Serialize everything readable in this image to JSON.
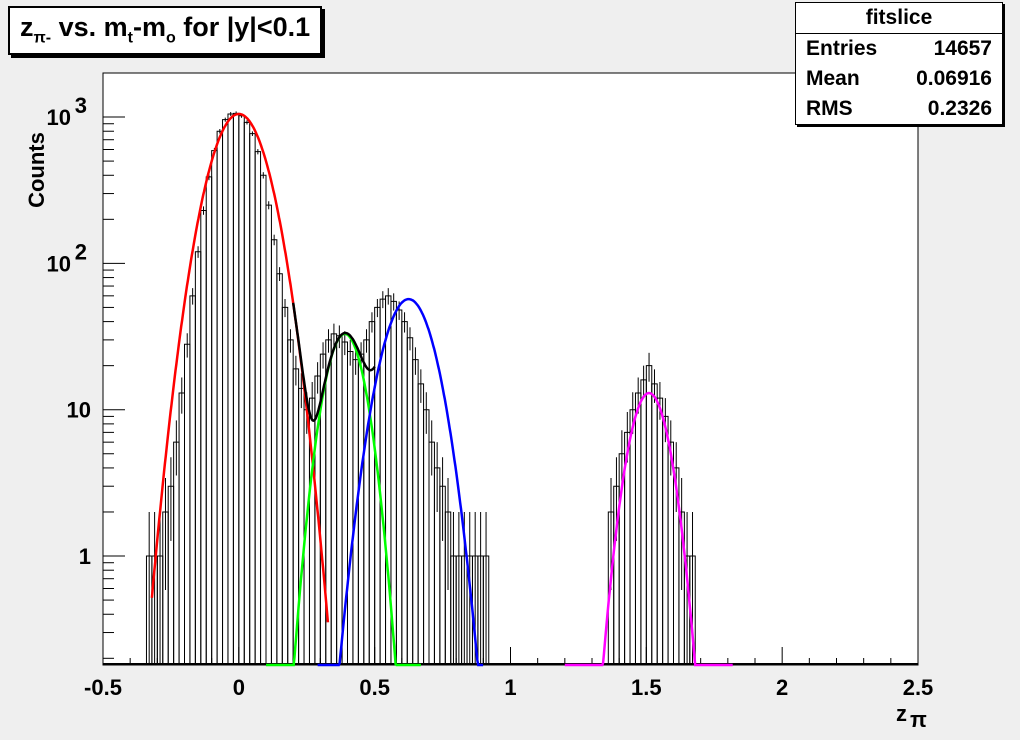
{
  "title": {
    "main": "z",
    "main_sub": "π-",
    "mid": " vs. m",
    "mid_sub": "t",
    "dash": "-m",
    "dash_sub": "o",
    "tail": " for |y|<0.1"
  },
  "stats": {
    "title": "fitslice",
    "rows": [
      {
        "label": "Entries",
        "value": "14657"
      },
      {
        "label": "Mean",
        "value": "0.06916"
      },
      {
        "label": "RMS",
        "value": "0.2326"
      }
    ]
  },
  "chart_data": {
    "type": "line",
    "title": "zπ- vs. mt-mo for |y|<0.1",
    "xlabel": "zπ",
    "ylabel": "Counts",
    "xlim": [
      -0.5,
      2.5
    ],
    "ylim": [
      0.18,
      2000
    ],
    "yscale": "log",
    "x_ticks": [
      "-0.5",
      "0",
      "0.5",
      "1",
      "1.5",
      "2",
      "2.5"
    ],
    "y_ticks": [
      {
        "value": 1,
        "base": "1",
        "exp": ""
      },
      {
        "value": 10,
        "base": "10",
        "exp": ""
      },
      {
        "value": 100,
        "base": "10",
        "exp": "2"
      },
      {
        "value": 1000,
        "base": "10",
        "exp": "3"
      }
    ],
    "histogram": {
      "name": "fitslice",
      "x": [
        -0.33,
        -0.31,
        -0.29,
        -0.27,
        -0.25,
        -0.23,
        -0.21,
        -0.19,
        -0.17,
        -0.15,
        -0.13,
        -0.11,
        -0.09,
        -0.07,
        -0.05,
        -0.03,
        -0.01,
        0.01,
        0.03,
        0.05,
        0.07,
        0.09,
        0.11,
        0.13,
        0.15,
        0.17,
        0.19,
        0.21,
        0.23,
        0.25,
        0.27,
        0.29,
        0.31,
        0.33,
        0.35,
        0.37,
        0.39,
        0.41,
        0.43,
        0.45,
        0.47,
        0.49,
        0.51,
        0.53,
        0.55,
        0.57,
        0.59,
        0.61,
        0.63,
        0.65,
        0.67,
        0.69,
        0.71,
        0.73,
        0.75,
        0.77,
        0.79,
        0.81,
        0.83,
        0.85,
        0.87,
        0.89,
        0.91,
        1.37,
        1.39,
        1.41,
        1.43,
        1.45,
        1.47,
        1.49,
        1.51,
        1.53,
        1.55,
        1.57,
        1.59,
        1.61,
        1.63,
        1.65,
        1.67
      ],
      "y": [
        1,
        1,
        1,
        2,
        3,
        6,
        13,
        28,
        60,
        120,
        230,
        390,
        590,
        800,
        960,
        1050,
        1060,
        1020,
        920,
        770,
        580,
        400,
        250,
        145,
        85,
        50,
        30,
        19,
        14,
        10,
        12,
        17,
        24,
        30,
        33,
        32,
        29,
        25,
        22,
        24,
        30,
        40,
        50,
        57,
        60,
        55,
        48,
        40,
        31,
        22,
        15,
        10,
        6,
        4,
        3,
        2,
        1,
        1,
        1,
        1,
        1,
        1,
        1,
        2,
        3,
        5,
        7,
        10,
        13,
        16,
        20,
        15,
        12,
        9,
        6,
        4,
        2,
        1,
        1
      ]
    },
    "series": [
      {
        "color": "#ff0000",
        "mean": 0.0,
        "sigma": 0.082,
        "amplitude": 1050,
        "x_range": [
          -0.32,
          0.33
        ]
      },
      {
        "color": "#00ff00",
        "mean": 0.39,
        "sigma": 0.058,
        "amplitude": 33,
        "x_range": [
          0.1,
          0.67
        ]
      },
      {
        "color": "#0000ff",
        "mean": 0.625,
        "sigma": 0.075,
        "amplitude": 57,
        "x_range": [
          0.29,
          0.9
        ]
      },
      {
        "color": "#ff00ff",
        "mean": 1.51,
        "sigma": 0.058,
        "amplitude": 13,
        "x_range": [
          1.2,
          1.82
        ]
      }
    ],
    "total_fit": {
      "color": "#000000",
      "x_range": [
        0.2,
        0.5
      ]
    },
    "grid": false,
    "legend": "top-right"
  }
}
